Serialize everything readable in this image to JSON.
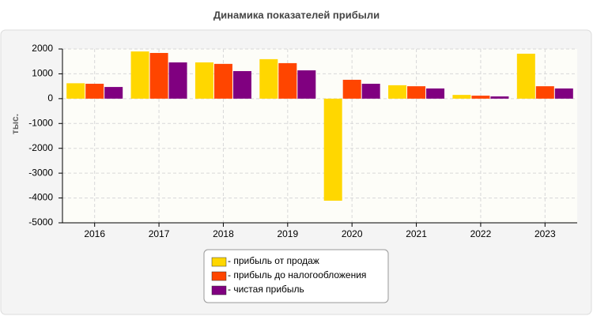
{
  "chart_data": {
    "type": "bar",
    "title": "Динамика показателей прибыли",
    "y_label": "тыс.",
    "categories": [
      "2016",
      "2017",
      "2018",
      "2019",
      "2020",
      "2021",
      "2022",
      "2023"
    ],
    "series": [
      {
        "name": "- прибыль от продаж",
        "color": "#ffd700",
        "values": [
          620,
          1900,
          1460,
          1590,
          -4110,
          540,
          150,
          1810
        ]
      },
      {
        "name": "- прибыль до налогообложения",
        "color": "#ff4500",
        "values": [
          600,
          1840,
          1400,
          1430,
          760,
          500,
          120,
          500
        ]
      },
      {
        "name": "- чистая прибыль",
        "color": "#800080",
        "values": [
          470,
          1460,
          1110,
          1140,
          600,
          410,
          90,
          410
        ]
      }
    ],
    "ylim": [
      -5000,
      2000
    ],
    "yticks": [
      -5000,
      -4000,
      -3000,
      -2000,
      -1000,
      0,
      1000,
      2000
    ],
    "grid": true,
    "legend": "bottom"
  }
}
